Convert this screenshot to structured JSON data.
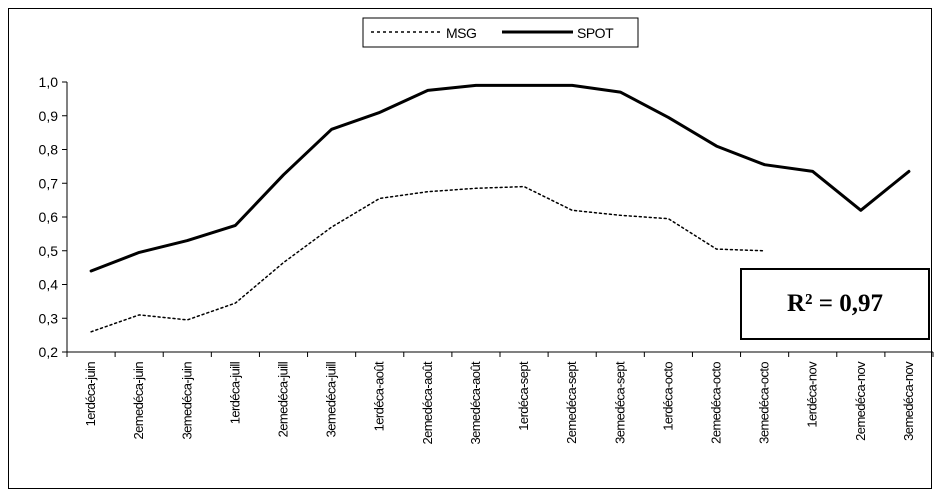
{
  "chart_data": {
    "type": "line",
    "categories": [
      "1erdéca-juin",
      "2emedéca-juin",
      "3emedéca-juin",
      "1erdéca-juill",
      "2emedéca-juill",
      "3emedéca-juill",
      "1erdéca-août",
      "2emedéca-août",
      "3emedéca-août",
      "1erdéca-sept",
      "2emedéca-sept",
      "3emedéca-sept",
      "1erdéca-octo",
      "2emedéca-octo",
      "3emedéca-octo",
      "1erdéca-nov",
      "2emedéca-nov",
      "3emedéca-nov"
    ],
    "series": [
      {
        "name": "MSG",
        "style": "dotted",
        "color": "#000000",
        "values": [
          0.26,
          0.31,
          0.295,
          0.345,
          0.465,
          0.57,
          0.655,
          0.675,
          0.685,
          0.69,
          0.62,
          0.605,
          0.595,
          0.505,
          0.5,
          null,
          null,
          null
        ]
      },
      {
        "name": "SPOT",
        "style": "solid",
        "color": "#000000",
        "values": [
          0.44,
          0.495,
          0.53,
          0.575,
          0.725,
          0.86,
          0.91,
          0.975,
          0.99,
          0.99,
          0.99,
          0.97,
          0.895,
          0.81,
          0.755,
          0.735,
          0.62,
          0.735
        ]
      }
    ],
    "ylim": [
      0.2,
      1.0
    ],
    "yticks": [
      "0,2",
      "0,3",
      "0,4",
      "0,5",
      "0,6",
      "0,7",
      "0,8",
      "0,9",
      "1,0"
    ],
    "grid": false,
    "legend_position": "top-center",
    "annotation": "R² = 0,97"
  }
}
